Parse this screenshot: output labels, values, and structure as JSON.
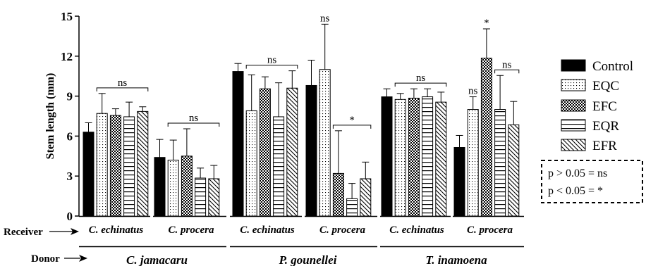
{
  "chart_data": {
    "type": "bar",
    "ylabel": "Stem length (mm)",
    "ylim": [
      0,
      15
    ],
    "yticks": [
      "0",
      "3",
      "6",
      "9",
      "12",
      "15"
    ],
    "row_labels": {
      "receiver": "Receiver",
      "donor": "Donor"
    },
    "series": [
      {
        "name": "Control",
        "pattern": "solid"
      },
      {
        "name": "EQC",
        "pattern": "dots"
      },
      {
        "name": "EFC",
        "pattern": "checker"
      },
      {
        "name": "EQR",
        "pattern": "hlines"
      },
      {
        "name": "EFR",
        "pattern": "diag"
      }
    ],
    "groups": [
      {
        "receiver": "C. echinatus",
        "donor": "C. jamacaru",
        "values": [
          6.3,
          7.7,
          7.55,
          7.45,
          7.85
        ],
        "errors": [
          0.7,
          1.5,
          0.5,
          1.1,
          0.35
        ],
        "bracket": {
          "from": 1,
          "to": 4,
          "label": "ns"
        }
      },
      {
        "receiver": "C. procera",
        "donor": "C. jamacaru",
        "values": [
          4.4,
          4.2,
          4.5,
          2.85,
          2.8
        ],
        "errors": [
          1.35,
          1.5,
          2.05,
          0.75,
          1.0
        ],
        "bracket": {
          "from": 1,
          "to": 4,
          "label": "ns"
        }
      },
      {
        "receiver": "C. echinatus",
        "donor": "P. gounellei",
        "values": [
          10.85,
          7.9,
          9.55,
          7.45,
          9.6
        ],
        "errors": [
          0.6,
          2.7,
          0.9,
          2.55,
          1.3
        ],
        "bracket": {
          "from": 1,
          "to": 4,
          "label": "ns"
        }
      },
      {
        "receiver": "C. procera",
        "donor": "P. gounellei",
        "values": [
          9.8,
          11.0,
          3.2,
          1.3,
          2.8
        ],
        "errors": [
          1.9,
          3.4,
          3.2,
          1.15,
          1.25
        ],
        "bracket": {
          "from": 2,
          "to": 4,
          "label": "*"
        },
        "bar_labels": [
          {
            "bar": 1,
            "label": "ns"
          }
        ]
      },
      {
        "receiver": "C. echinatus",
        "donor": "T. inamoena",
        "values": [
          8.95,
          8.75,
          8.85,
          8.95,
          8.55
        ],
        "errors": [
          0.6,
          0.45,
          0.7,
          0.6,
          0.75
        ],
        "bracket": {
          "from": 1,
          "to": 4,
          "label": "ns"
        }
      },
      {
        "receiver": "C. procera",
        "donor": "T. inamoena",
        "values": [
          5.15,
          8.0,
          11.85,
          8.0,
          6.85
        ],
        "errors": [
          0.9,
          0.95,
          2.2,
          2.55,
          1.75
        ],
        "bracket": {
          "from": 3,
          "to": 4,
          "label": "ns"
        },
        "bar_labels": [
          {
            "bar": 1,
            "label": "ns"
          },
          {
            "bar": 2,
            "label": "*"
          }
        ]
      }
    ],
    "donors": [
      "C. jamacaru",
      "P. gounellei",
      "T. inamoena"
    ],
    "significance_note": [
      "p > 0.05 = ns",
      "p < 0.05 = *"
    ],
    "legend_position": "right",
    "grid": false
  }
}
